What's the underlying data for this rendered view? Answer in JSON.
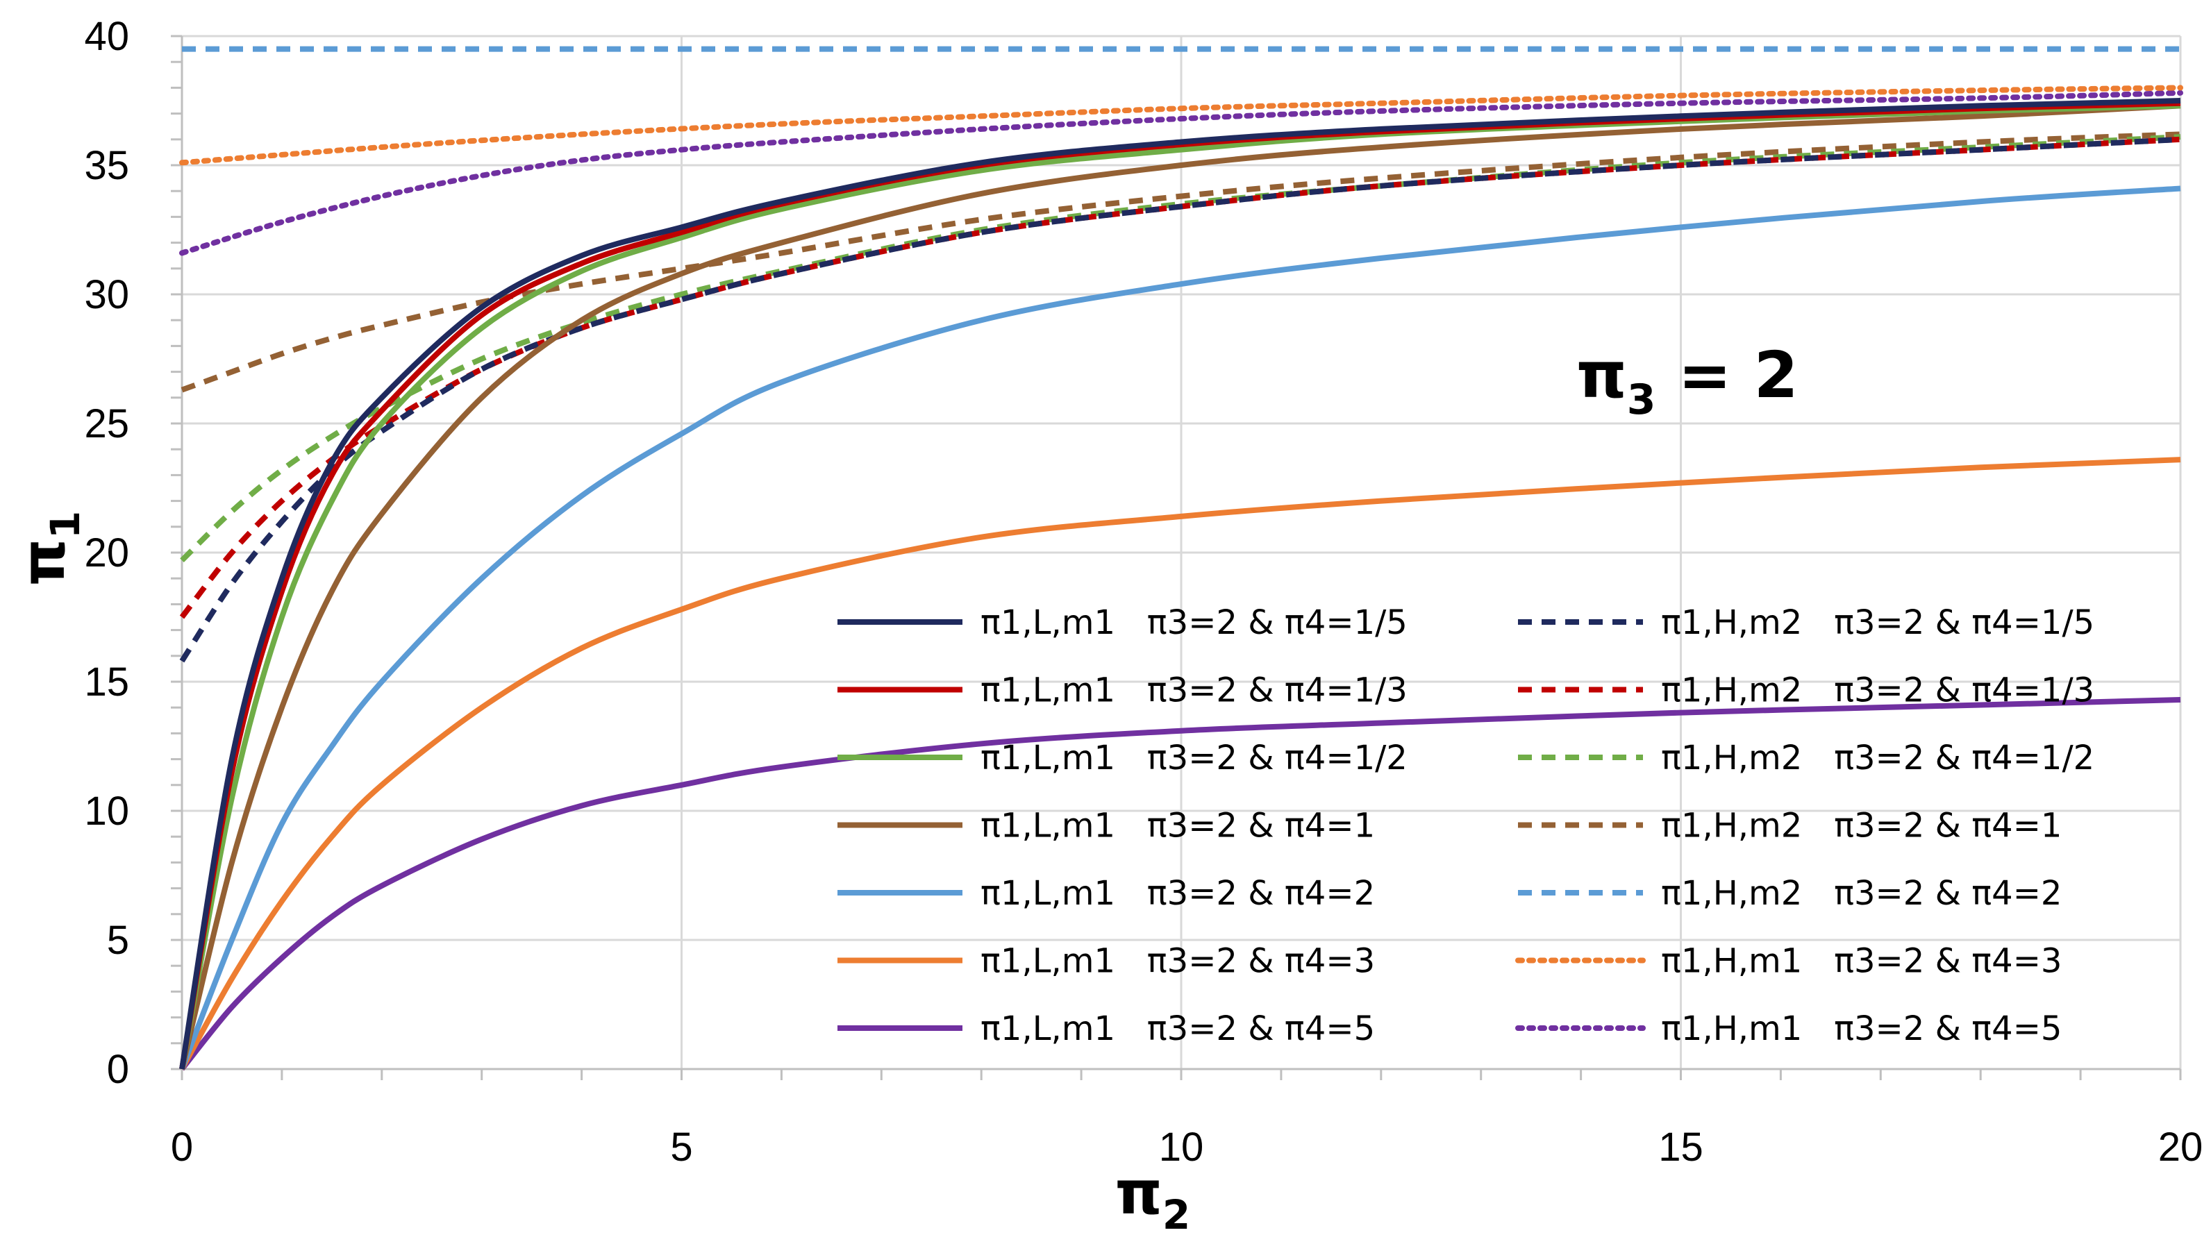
{
  "chart_data": {
    "type": "line",
    "title": "",
    "xlabel": "π",
    "xlabel_sub": "2",
    "ylabel": "π",
    "ylabel_sub": "1",
    "xlim": [
      0,
      20
    ],
    "ylim": [
      0,
      40
    ],
    "x_ticks": [
      0,
      5,
      10,
      15,
      20
    ],
    "y_ticks": [
      0,
      5,
      10,
      15,
      20,
      25,
      30,
      35,
      40
    ],
    "x_tick_labels": [
      "0",
      "5",
      "10",
      "15",
      "20"
    ],
    "y_tick_labels": [
      "0",
      "5",
      "10",
      "15",
      "20",
      "25",
      "30",
      "35",
      "40"
    ],
    "grid": true,
    "legend_position": "bottom-right",
    "annotation": {
      "text": "π",
      "sub": "3",
      "suffix": " = 2"
    },
    "series": [
      {
        "name": "π1,L,m1   π3=2 & π4=1/5",
        "color": "#1f2a5e",
        "dash": "solid",
        "x": [
          0,
          0.5,
          1,
          1.5,
          2,
          3,
          4,
          5,
          6,
          8,
          10,
          12,
          15,
          18,
          20
        ],
        "y": [
          0,
          12,
          19,
          23.5,
          26,
          29.5,
          31.5,
          32.6,
          33.6,
          35.1,
          35.9,
          36.4,
          36.9,
          37.3,
          37.5
        ]
      },
      {
        "name": "π1,L,m1   π3=2 & π4=1/3",
        "color": "#c00000",
        "dash": "solid",
        "x": [
          0,
          0.5,
          1,
          1.5,
          2,
          3,
          4,
          5,
          6,
          8,
          10,
          12,
          15,
          18,
          20
        ],
        "y": [
          0,
          11.5,
          18.5,
          23,
          25.5,
          29.2,
          31.2,
          32.4,
          33.5,
          35,
          35.8,
          36.3,
          36.8,
          37.2,
          37.4
        ]
      },
      {
        "name": "π1,L,m1   π3=2 & π4=1/2",
        "color": "#70ad47",
        "dash": "solid",
        "x": [
          0,
          0.5,
          1,
          1.5,
          2,
          3,
          4,
          5,
          6,
          8,
          10,
          12,
          15,
          18,
          20
        ],
        "y": [
          0,
          10.5,
          17.5,
          22,
          25,
          28.7,
          30.9,
          32.2,
          33.3,
          34.8,
          35.6,
          36.2,
          36.7,
          37.1,
          37.3
        ]
      },
      {
        "name": "π1,L,m1   π3=2 & π4=1",
        "color": "#946134",
        "dash": "solid",
        "x": [
          0,
          0.5,
          1,
          1.5,
          2,
          3,
          4,
          5,
          6,
          8,
          10,
          12,
          15,
          18,
          20
        ],
        "y": [
          0,
          8,
          14,
          18.5,
          21.5,
          26,
          29,
          30.8,
          32,
          33.9,
          35,
          35.7,
          36.4,
          36.9,
          37.3
        ]
      },
      {
        "name": "π1,L,m1   π3=2 & π4=2",
        "color": "#5b9bd5",
        "dash": "solid",
        "x": [
          0,
          0.5,
          1,
          1.5,
          2,
          3,
          4,
          5,
          6,
          8,
          10,
          12,
          15,
          18,
          20
        ],
        "y": [
          0,
          5,
          9.5,
          12.5,
          15,
          19,
          22.2,
          24.6,
          26.6,
          29,
          30.4,
          31.4,
          32.6,
          33.6,
          34.1
        ]
      },
      {
        "name": "π1,L,m1   π3=2 & π4=3",
        "color": "#ed7d31",
        "dash": "solid",
        "x": [
          0,
          0.5,
          1,
          1.5,
          2,
          3,
          4,
          5,
          6,
          8,
          10,
          12,
          15,
          18,
          20
        ],
        "y": [
          0,
          3.5,
          6.5,
          9,
          11,
          14,
          16.3,
          17.8,
          19,
          20.6,
          21.4,
          22,
          22.7,
          23.3,
          23.6
        ]
      },
      {
        "name": "π1,L,m1   π3=2 & π4=5",
        "color": "#7030a0",
        "dash": "solid",
        "x": [
          0,
          0.5,
          1,
          1.5,
          2,
          3,
          4,
          5,
          6,
          8,
          10,
          12,
          15,
          18,
          20
        ],
        "y": [
          0,
          2.4,
          4.3,
          5.9,
          7.1,
          8.9,
          10.2,
          11,
          11.7,
          12.6,
          13.1,
          13.4,
          13.8,
          14.1,
          14.3
        ]
      },
      {
        "name": "π1,H,m2   π3=2 & π4=1/5",
        "color": "#1f2a5e",
        "dash": "dash",
        "x": [
          0,
          0.5,
          1,
          1.5,
          2,
          3,
          4,
          5,
          6,
          8,
          10,
          12,
          15,
          18,
          20
        ],
        "y": [
          15.8,
          18.8,
          21.2,
          23.2,
          24.7,
          27.1,
          28.7,
          29.8,
          30.8,
          32.4,
          33.4,
          34.2,
          35,
          35.6,
          36
        ]
      },
      {
        "name": "π1,H,m2   π3=2 & π4=1/3",
        "color": "#c00000",
        "dash": "dash",
        "x": [
          0,
          0.5,
          1,
          1.5,
          2,
          3,
          4,
          5,
          6,
          8,
          10,
          12,
          15,
          18,
          20
        ],
        "y": [
          17.5,
          20,
          22,
          23.6,
          24.9,
          27.1,
          28.7,
          29.8,
          30.8,
          32.4,
          33.4,
          34.2,
          35,
          35.6,
          36
        ]
      },
      {
        "name": "π1,H,m2   π3=2 & π4=1/2",
        "color": "#70ad47",
        "dash": "dash",
        "x": [
          0,
          0.5,
          1,
          1.5,
          2,
          3,
          4,
          5,
          6,
          8,
          10,
          12,
          15,
          18,
          20
        ],
        "y": [
          19.7,
          21.6,
          23.2,
          24.5,
          25.6,
          27.5,
          28.9,
          30,
          30.9,
          32.5,
          33.5,
          34.2,
          35.1,
          35.7,
          36.1
        ]
      },
      {
        "name": "π1,H,m2   π3=2 & π4=1",
        "color": "#946134",
        "dash": "dash",
        "x": [
          0,
          0.5,
          1,
          1.5,
          2,
          3,
          4,
          5,
          6,
          8,
          10,
          12,
          15,
          18,
          20
        ],
        "y": [
          26.3,
          27,
          27.7,
          28.3,
          28.8,
          29.7,
          30.4,
          31,
          31.6,
          32.9,
          33.8,
          34.5,
          35.3,
          35.9,
          36.2
        ]
      },
      {
        "name": "π1,H,m2   π3=2 & π4=2",
        "color": "#5b9bd5",
        "dash": "dash",
        "x": [
          0,
          20
        ],
        "y": [
          39.5,
          39.5
        ]
      },
      {
        "name": "π1,H,m1   π3=2 & π4=3",
        "color": "#ed7d31",
        "dash": "dot",
        "x": [
          0,
          2,
          4,
          6,
          8,
          10,
          12,
          15,
          18,
          20
        ],
        "y": [
          35.1,
          35.7,
          36.2,
          36.6,
          36.9,
          37.2,
          37.4,
          37.7,
          37.9,
          38
        ]
      },
      {
        "name": "π1,H,m1   π3=2 & π4=5",
        "color": "#7030a0",
        "dash": "dot",
        "x": [
          0,
          1,
          2,
          3,
          4,
          5,
          6,
          8,
          10,
          12,
          15,
          18,
          20
        ],
        "y": [
          31.6,
          32.8,
          33.8,
          34.6,
          35.2,
          35.6,
          35.9,
          36.4,
          36.8,
          37.1,
          37.4,
          37.6,
          37.8
        ]
      }
    ]
  }
}
